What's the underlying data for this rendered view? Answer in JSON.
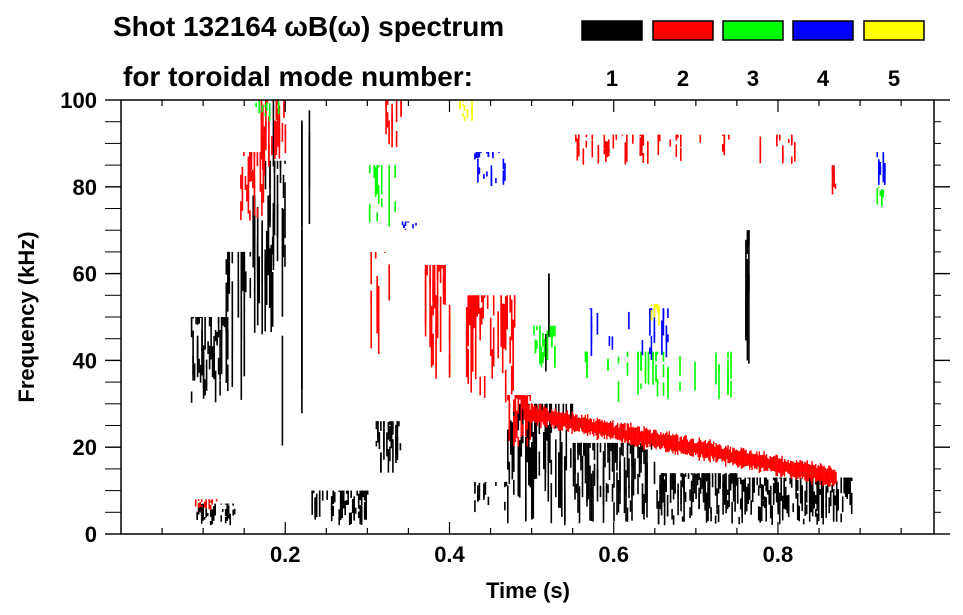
{
  "chart_data": {
    "type": "heatmap",
    "title_line1": "Shot 132164 ωB(ω) spectrum",
    "title_line2": "for toroidal mode number:",
    "xlabel": "Time (s)",
    "ylabel": "Frequency (kHz)",
    "xlim": [
      0,
      0.99
    ],
    "ylim": [
      0,
      100
    ],
    "x_ticks": [
      0.2,
      0.4,
      0.6,
      0.8
    ],
    "x_tick_labels": [
      "0.2",
      "0.4",
      "0.6",
      "0.8"
    ],
    "x_minor_step": 0.05,
    "y_ticks": [
      0,
      20,
      40,
      60,
      80,
      100
    ],
    "y_tick_labels": [
      "0",
      "20",
      "40",
      "60",
      "80",
      "100"
    ],
    "y_minor_step": 5,
    "legend": [
      {
        "label": "1",
        "color": "#000000"
      },
      {
        "label": "2",
        "color": "#ff0000"
      },
      {
        "label": "3",
        "color": "#00ff00"
      },
      {
        "label": "4",
        "color": "#0000ff"
      },
      {
        "label": "5",
        "color": "#ffff00"
      }
    ],
    "series": [
      {
        "mode": "1",
        "color": "#000000",
        "regions": [
          [
            0.085,
            0.13,
            30,
            50,
            1.0
          ],
          [
            0.12,
            0.16,
            30,
            65,
            0.5
          ],
          [
            0.16,
            0.185,
            45,
            78,
            0.7
          ],
          [
            0.175,
            0.2,
            60,
            86,
            0.7
          ],
          [
            0.17,
            0.23,
            10,
            100,
            0.15
          ],
          [
            0.09,
            0.14,
            2,
            7,
            0.7
          ],
          [
            0.23,
            0.3,
            2,
            10,
            0.9
          ],
          [
            0.31,
            0.34,
            14,
            26,
            0.8
          ],
          [
            0.43,
            0.47,
            5,
            12,
            0.4
          ],
          [
            0.47,
            0.55,
            2,
            30,
            0.9
          ],
          [
            0.55,
            0.65,
            2,
            21,
            0.9
          ],
          [
            0.65,
            0.75,
            2,
            14,
            0.9
          ],
          [
            0.75,
            0.89,
            2,
            13,
            0.9
          ],
          [
            0.5,
            0.53,
            35,
            60,
            0.3
          ],
          [
            0.76,
            0.765,
            35,
            70,
            0.5
          ]
        ]
      },
      {
        "mode": "2",
        "color": "#ff0000",
        "regions": [
          [
            0.145,
            0.175,
            72,
            88,
            0.8
          ],
          [
            0.17,
            0.2,
            82,
            100,
            0.8
          ],
          [
            0.3,
            0.33,
            32,
            65,
            0.6
          ],
          [
            0.37,
            0.4,
            35,
            62,
            0.6
          ],
          [
            0.42,
            0.48,
            30,
            55,
            0.8
          ],
          [
            0.47,
            0.5,
            20,
            32,
            0.6
          ],
          [
            0.32,
            0.35,
            88,
            100,
            0.5
          ],
          [
            0.54,
            0.83,
            85,
            92,
            0.25
          ],
          [
            0.09,
            0.12,
            5,
            8,
            0.5
          ],
          [
            0.86,
            0.87,
            78,
            85,
            0.6
          ]
        ],
        "band": {
          "t": [
            0.49,
            0.87
          ],
          "f": [
            28,
            13
          ],
          "width": 4
        }
      },
      {
        "mode": "3",
        "color": "#00ff00",
        "regions": [
          [
            0.5,
            0.53,
            38,
            48,
            0.7
          ],
          [
            0.55,
            0.75,
            30,
            42,
            0.15
          ],
          [
            0.3,
            0.34,
            70,
            85,
            0.4
          ],
          [
            0.16,
            0.2,
            95,
            100,
            0.4
          ],
          [
            0.92,
            0.93,
            75,
            80,
            0.6
          ]
        ]
      },
      {
        "mode": "4",
        "color": "#0000ff",
        "regions": [
          [
            0.43,
            0.47,
            80,
            88,
            0.6
          ],
          [
            0.57,
            0.67,
            40,
            52,
            0.3
          ],
          [
            0.92,
            0.93,
            80,
            88,
            0.6
          ],
          [
            0.34,
            0.36,
            70,
            72,
            0.5
          ]
        ]
      },
      {
        "mode": "5",
        "color": "#ffff00",
        "regions": [
          [
            0.645,
            0.655,
            48,
            53,
            0.8
          ],
          [
            0.41,
            0.43,
            95,
            100,
            0.5
          ]
        ]
      }
    ]
  }
}
